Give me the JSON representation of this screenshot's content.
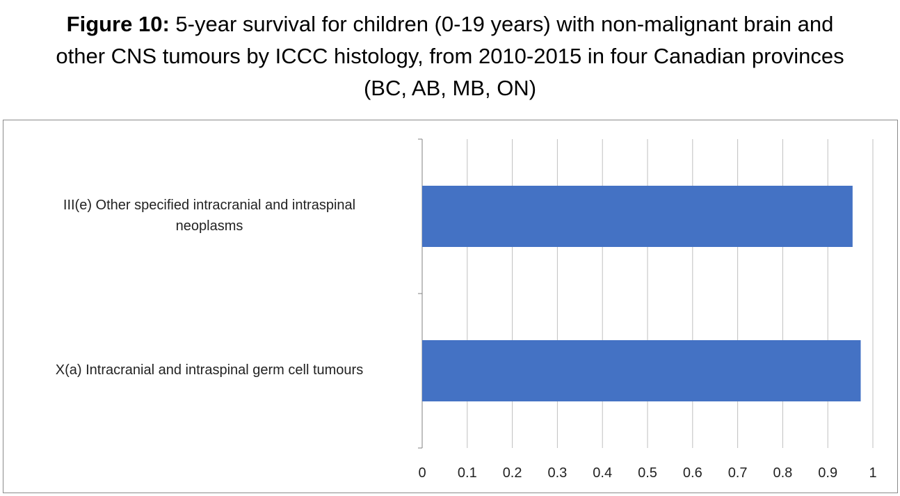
{
  "figure": {
    "label": "Figure 10:",
    "title_line1": " 5-year survival for children (0-19 years) with non-malignant brain and",
    "title_line2": "other CNS tumours by ICCC histology, from 2010-2015 in four Canadian provinces",
    "title_line3": "(BC, AB, MB, ON)"
  },
  "chart_data": {
    "type": "bar",
    "orientation": "horizontal",
    "title": "5-year survival for children (0-19 years) with non-malignant brain and other CNS tumours by ICCC histology, from 2010-2015 in four Canadian provinces (BC, AB, MB, ON)",
    "categories": [
      "III(e) Other specified intracranial and intraspinal neoplasms",
      "X(a) Intracranial and intraspinal germ cell tumours"
    ],
    "category_label_lines": [
      [
        "III(e) Other specified intracranial and intraspinal",
        "neoplasms"
      ],
      [
        "X(a) Intracranial and intraspinal germ cell tumours"
      ]
    ],
    "values": [
      0.955,
      0.973
    ],
    "xlim": [
      0,
      1
    ],
    "xticks": [
      "0",
      "0.1",
      "0.2",
      "0.3",
      "0.4",
      "0.5",
      "0.6",
      "0.7",
      "0.8",
      "0.9",
      "1"
    ],
    "xlabel": "",
    "ylabel": "",
    "grid": true,
    "legend": "none",
    "colors": {
      "bar": "#4472C4",
      "grid": "#BFBFBF",
      "axis": "#808080",
      "text": "#222222"
    }
  }
}
